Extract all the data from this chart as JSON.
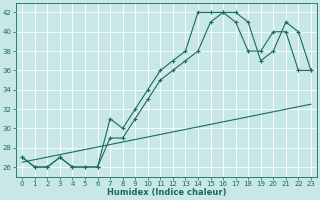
{
  "xlabel": "Humidex (Indice chaleur)",
  "bg_color": "#c8e8e8",
  "grid_color": "#b0d8d8",
  "line_color": "#1a6b5a",
  "xlim": [
    -0.5,
    23.5
  ],
  "ylim": [
    25.0,
    43.0
  ],
  "xticks": [
    0,
    1,
    2,
    3,
    4,
    5,
    6,
    7,
    8,
    9,
    10,
    11,
    12,
    13,
    14,
    15,
    16,
    17,
    18,
    19,
    20,
    21,
    22,
    23
  ],
  "yticks": [
    26,
    28,
    30,
    32,
    34,
    36,
    38,
    40,
    42
  ],
  "curve1_x": [
    0,
    1,
    2,
    3,
    4,
    5,
    6,
    7,
    8,
    9,
    10,
    11,
    12,
    13,
    14,
    15,
    16,
    17,
    18,
    19,
    20,
    21,
    22,
    23
  ],
  "curve1_y": [
    27,
    26,
    26,
    27,
    26,
    26,
    26,
    29,
    29,
    31,
    33,
    35,
    36,
    37,
    38,
    41,
    42,
    42,
    41,
    37,
    38,
    41,
    40,
    36
  ],
  "curve2_x": [
    0,
    1,
    2,
    3,
    4,
    5,
    6,
    7,
    8,
    9,
    10,
    11,
    12,
    13,
    14,
    15,
    16,
    17,
    18,
    19,
    20,
    21,
    22,
    23
  ],
  "curve2_y": [
    27,
    26,
    26,
    27,
    26,
    26,
    26,
    31,
    30,
    32,
    34,
    36,
    37,
    38,
    42,
    42,
    42,
    41,
    38,
    38,
    40,
    40,
    36,
    36
  ],
  "line3_x": [
    0,
    23
  ],
  "line3_y": [
    26.5,
    32.5
  ]
}
